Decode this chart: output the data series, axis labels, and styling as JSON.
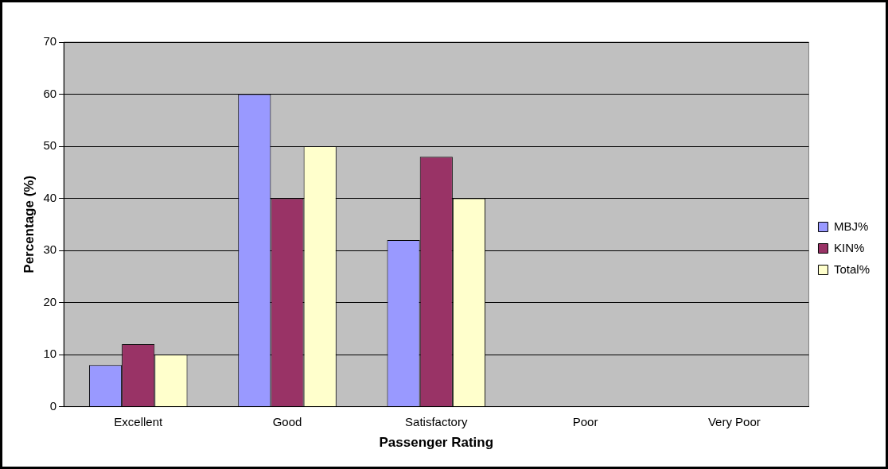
{
  "chart_data": {
    "type": "bar",
    "xlabel": "Passenger Rating",
    "ylabel": "Percentage (%)",
    "categories": [
      "Excellent",
      "Good",
      "Satisfactory",
      "Poor",
      "Very Poor"
    ],
    "series": [
      {
        "name": "MBJ%",
        "color": "#9999ff",
        "values": [
          8,
          60,
          32,
          0,
          0
        ]
      },
      {
        "name": "KIN%",
        "color": "#993366",
        "values": [
          12,
          40,
          48,
          0,
          0
        ]
      },
      {
        "name": "Total%",
        "color": "#ffffcc",
        "values": [
          10,
          50,
          40,
          0,
          0
        ]
      }
    ],
    "ylim": [
      0,
      70
    ],
    "yticks": [
      0,
      10,
      20,
      30,
      40,
      50,
      60,
      70
    ],
    "grid": "y",
    "legend": "right"
  }
}
